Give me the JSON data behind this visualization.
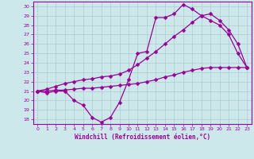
{
  "bg_color": "#cce8ea",
  "line_color": "#990099",
  "grid_color": "#aacccc",
  "xlabel": "Windchill (Refroidissement éolien,°C)",
  "xlim": [
    -0.5,
    23.5
  ],
  "ylim": [
    17.5,
    30.5
  ],
  "yticks": [
    18,
    19,
    20,
    21,
    22,
    23,
    24,
    25,
    26,
    27,
    28,
    29,
    30
  ],
  "xticks": [
    0,
    1,
    2,
    3,
    4,
    5,
    6,
    7,
    8,
    9,
    10,
    11,
    12,
    13,
    14,
    15,
    16,
    17,
    18,
    19,
    20,
    21,
    22,
    23
  ],
  "curve1_x": [
    0,
    1,
    2,
    3,
    4,
    5,
    6,
    7,
    8,
    9,
    10,
    11,
    12,
    13,
    14,
    15,
    16,
    17,
    18,
    19,
    20,
    21,
    22,
    23
  ],
  "curve1_y": [
    21.0,
    20.8,
    21.0,
    21.0,
    20.0,
    19.5,
    18.2,
    17.7,
    18.2,
    19.8,
    22.2,
    25.0,
    25.2,
    28.8,
    28.8,
    29.2,
    30.2,
    29.7,
    29.0,
    28.5,
    28.0,
    27.0,
    25.0,
    23.5
  ],
  "curve2_x": [
    0,
    1,
    2,
    3,
    4,
    5,
    6,
    7,
    8,
    9,
    10,
    11,
    12,
    13,
    14,
    15,
    16,
    17,
    18,
    19,
    20,
    21,
    22,
    23
  ],
  "curve2_y": [
    21.0,
    21.0,
    21.1,
    21.1,
    21.2,
    21.3,
    21.3,
    21.4,
    21.5,
    21.6,
    21.7,
    21.8,
    22.0,
    22.2,
    22.5,
    22.7,
    23.0,
    23.2,
    23.4,
    23.5,
    23.5,
    23.5,
    23.5,
    23.5
  ],
  "curve3_x": [
    0,
    1,
    2,
    3,
    4,
    5,
    6,
    7,
    8,
    9,
    10,
    11,
    12,
    13,
    14,
    15,
    16,
    17,
    18,
    19,
    20,
    21,
    22,
    23
  ],
  "curve3_y": [
    21.0,
    21.2,
    21.5,
    21.8,
    22.0,
    22.2,
    22.3,
    22.5,
    22.6,
    22.8,
    23.2,
    23.8,
    24.5,
    25.2,
    26.0,
    26.8,
    27.5,
    28.3,
    29.0,
    29.2,
    28.5,
    27.5,
    26.0,
    23.5
  ]
}
